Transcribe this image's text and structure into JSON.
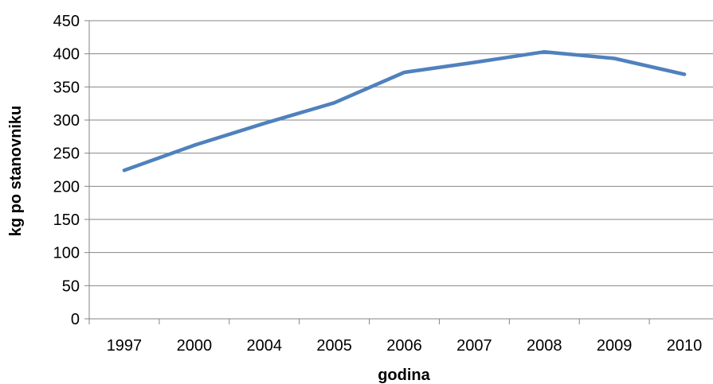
{
  "chart_data": {
    "type": "line",
    "title": "",
    "xlabel": "godina",
    "ylabel": "kg po stanovniku",
    "categories": [
      "1997",
      "2000",
      "2004",
      "2005",
      "2006",
      "2007",
      "2008",
      "2009",
      "2010"
    ],
    "series": [
      {
        "values": [
          224,
          262,
          295,
          326,
          372,
          387,
          403,
          393,
          369
        ],
        "color": "#4f81bd"
      }
    ],
    "ylim": [
      0,
      450
    ],
    "yticks": [
      0,
      50,
      100,
      150,
      200,
      250,
      300,
      350,
      400,
      450
    ],
    "grid": true,
    "legend": "none",
    "colors": {
      "line": "#4f81bd",
      "grid": "#868686",
      "axis": "#868686"
    }
  }
}
